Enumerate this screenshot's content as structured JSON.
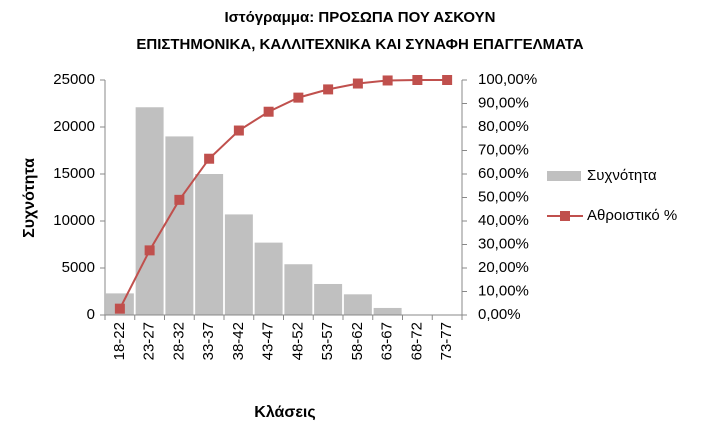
{
  "chart_data": {
    "type": "bar",
    "title": [
      "Ιστόγραμμα: ΠΡΟΣΩΠΑ ΠΟΥ ΑΣΚΟΥΝ",
      "ΕΠΙΣΤΗΜΟΝΙΚΑ, ΚΑΛΛΙΤΕΧΝΙΚΑ ΚΑΙ ΣΥΝΑΦΗ ΕΠΑΓΓΕΛΜΑΤΑ"
    ],
    "x_label": "Κλάσεις",
    "y_label": "Συχνότητα",
    "categories": [
      "18-22",
      "23-27",
      "28-32",
      "33-37",
      "38-42",
      "43-47",
      "48-52",
      "53-57",
      "58-62",
      "63-67",
      "68-72",
      "73-77"
    ],
    "series": [
      {
        "name": "Συχνότητα",
        "type": "bar",
        "axis": "y",
        "color": "#c0c0c0",
        "values": [
          2300,
          22100,
          19000,
          15000,
          10700,
          7700,
          5400,
          3300,
          2200,
          750,
          0,
          0
        ]
      },
      {
        "name": "Αθροιστικό %",
        "type": "line",
        "axis": "y2",
        "color": "#c0504d",
        "values": [
          2.7,
          27.5,
          49,
          66.5,
          78.5,
          86.5,
          92.5,
          96,
          98.5,
          99.8,
          100,
          100
        ]
      }
    ],
    "ylim": [
      0,
      25000
    ],
    "yticks": [
      0,
      5000,
      10000,
      15000,
      20000,
      25000
    ],
    "y2lim": [
      0,
      100
    ],
    "y2ticks": [
      {
        "value": 0,
        "label": "0,00%"
      },
      {
        "value": 10,
        "label": "10,00%"
      },
      {
        "value": 20,
        "label": "20,00%"
      },
      {
        "value": 30,
        "label": "30,00%"
      },
      {
        "value": 40,
        "label": "40,00%"
      },
      {
        "value": 50,
        "label": "50,00%"
      },
      {
        "value": 60,
        "label": "60,00%"
      },
      {
        "value": 70,
        "label": "70,00%"
      },
      {
        "value": 80,
        "label": "80,00%"
      },
      {
        "value": 90,
        "label": "90,00%"
      },
      {
        "value": 100,
        "label": "100,00%"
      }
    ],
    "legend": "right",
    "grid": false
  }
}
